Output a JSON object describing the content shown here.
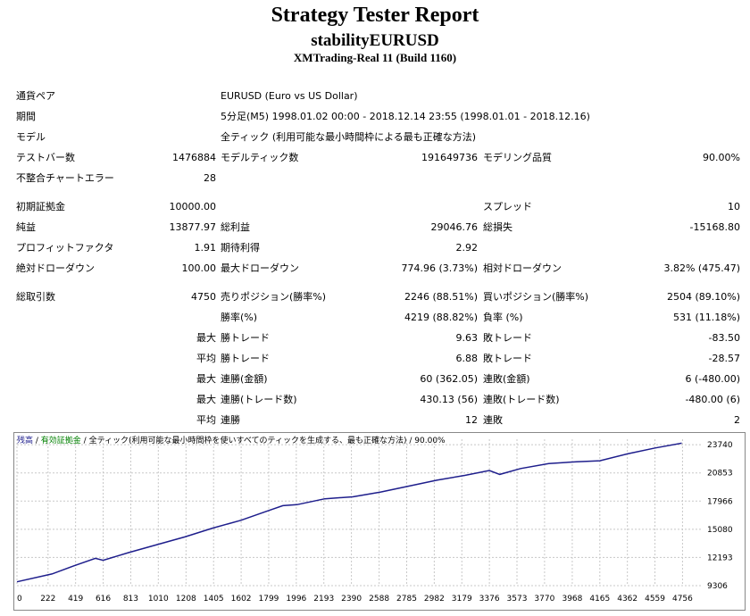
{
  "header": {
    "title": "Strategy Tester Report",
    "ea_name": "stabilityEURUSD",
    "server": "XMTrading-Real 11 (Build 1160)"
  },
  "info": {
    "symbol_label": "通貨ペア",
    "symbol_value": "EURUSD (Euro vs US Dollar)",
    "period_label": "期間",
    "period_value": "5分足(M5) 1998.01.02 00:00 - 2018.12.14 23:55 (1998.01.01 - 2018.12.16)",
    "model_label": "モデル",
    "model_value": "全ティック (利用可能な最小時間枠による最も正確な方法)",
    "bars_label": "テストバー数",
    "bars_value": "1476884",
    "ticks_label": "モデルティック数",
    "ticks_value": "191649736",
    "quality_label": "モデリング品質",
    "quality_value": "90.00%",
    "mismatch_label": "不整合チャートエラー",
    "mismatch_value": "28"
  },
  "stats": {
    "deposit_label": "初期証拠金",
    "deposit_value": "10000.00",
    "spread_label": "スプレッド",
    "spread_value": "10",
    "net_label": "純益",
    "net_value": "13877.97",
    "gross_profit_label": "総利益",
    "gross_profit_value": "29046.76",
    "gross_loss_label": "総損失",
    "gross_loss_value": "-15168.80",
    "pf_label": "プロフィットファクタ",
    "pf_value": "1.91",
    "expected_label": "期待利得",
    "expected_value": "2.92",
    "abs_dd_label": "絶対ドローダウン",
    "abs_dd_value": "100.00",
    "max_dd_label": "最大ドローダウン",
    "max_dd_value": "774.96 (3.73%)",
    "rel_dd_label": "相対ドローダウン",
    "rel_dd_value": "3.82% (475.47)",
    "total_trades_label": "総取引数",
    "total_trades_value": "4750",
    "short_label": "売りポジション(勝率%)",
    "short_value": "2246 (88.51%)",
    "long_label": "買いポジション(勝率%)",
    "long_value": "2504 (89.10%)",
    "win_label": "勝率(%)",
    "win_value": "4219 (88.82%)",
    "loss_label": "負率 (%)",
    "loss_value": "531 (11.18%)",
    "max_word": "最大",
    "avg_word": "平均",
    "largest_win_label": "勝トレード",
    "largest_win_value": "9.63",
    "largest_loss_label": "敗トレード",
    "largest_loss_value": "-83.50",
    "avg_win_label": "勝トレード",
    "avg_win_value": "6.88",
    "avg_loss_label": "敗トレード",
    "avg_loss_value": "-28.57",
    "max_cons_win_label": "連勝(金額)",
    "max_cons_win_value": "60 (362.05)",
    "max_cons_loss_label": "連敗(金額)",
    "max_cons_loss_value": "6 (-480.00)",
    "max_cons_profit_label": "連勝(トレード数)",
    "max_cons_profit_value": "430.13 (56)",
    "max_cons_lossamt_label": "連敗(トレード数)",
    "max_cons_lossamt_value": "-480.00 (6)",
    "avg_cons_win_label": "連勝",
    "avg_cons_win_value": "12",
    "avg_cons_loss_label": "連敗",
    "avg_cons_loss_value": "2"
  },
  "chart_legend": {
    "balance": "残高",
    "sep1": " / ",
    "equity": "有効証拠金",
    "sep2": " / ",
    "model": "全ティック(利用可能な最小時間枠を使いすべてのティックを生成する、最も正確な方法)",
    "sep3": " / ",
    "quality": "90.00%"
  },
  "colors": {
    "balance": "#1e1e8c",
    "equity": "#008000",
    "grid": "#c8c8c8"
  },
  "chart_data": {
    "type": "line",
    "x_ticks": [
      0,
      222,
      419,
      616,
      813,
      1010,
      1208,
      1405,
      1602,
      1799,
      1996,
      2193,
      2390,
      2588,
      2785,
      2982,
      3179,
      3376,
      3573,
      3770,
      3968,
      4165,
      4362,
      4559,
      4756
    ],
    "y_ticks": [
      9306,
      12193,
      15080,
      17966,
      20853,
      23740
    ],
    "xlim": [
      0,
      4900
    ],
    "ylim": [
      9306,
      24300
    ],
    "series": [
      {
        "name": "残高",
        "x": [
          0,
          250,
          400,
          560,
          616,
          800,
          1000,
          1200,
          1400,
          1600,
          1800,
          1900,
          2000,
          2200,
          2400,
          2600,
          2800,
          3000,
          3200,
          3376,
          3450,
          3600,
          3800,
          4000,
          4165,
          4362,
          4560,
          4750
        ],
        "values": [
          9700,
          10500,
          11300,
          12100,
          11900,
          12700,
          13500,
          14300,
          15200,
          16000,
          17000,
          17500,
          17600,
          18200,
          18400,
          18900,
          19500,
          20100,
          20600,
          21100,
          20700,
          21300,
          21800,
          22000,
          22100,
          22800,
          23400,
          23900
        ]
      }
    ]
  }
}
